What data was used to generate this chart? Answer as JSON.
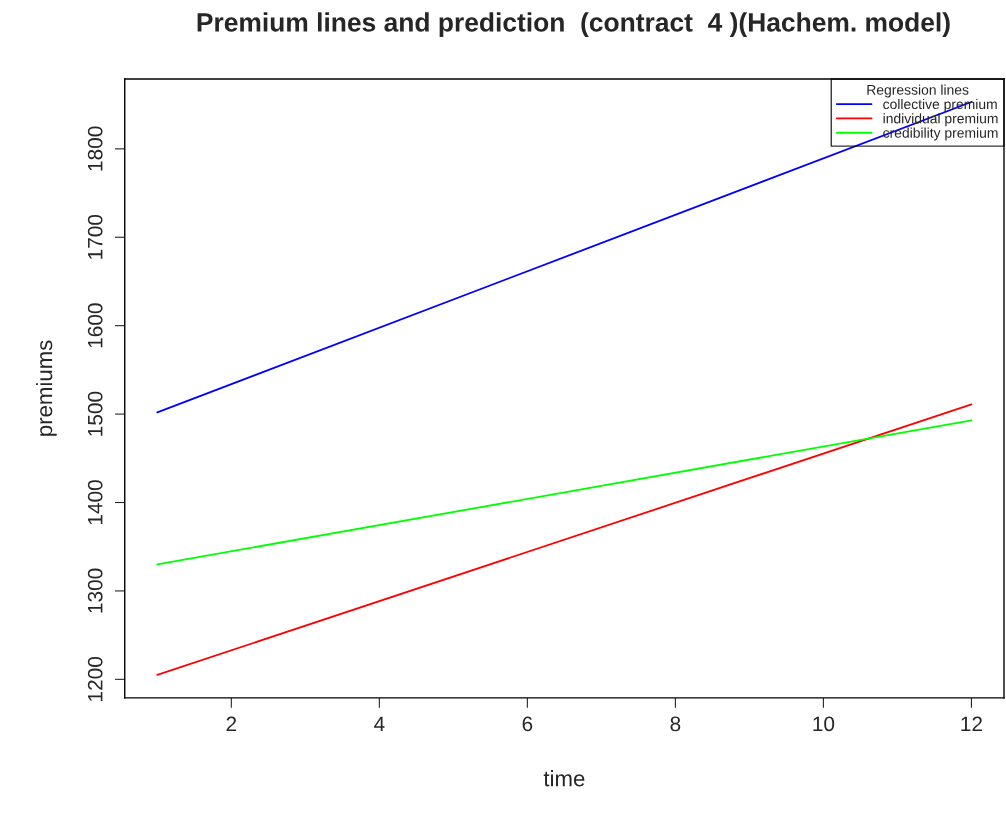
{
  "chart_data": {
    "type": "line",
    "title": "Premium lines and prediction  (contract  4 )(Hachem. model)",
    "xlabel": "time",
    "ylabel": "premiums",
    "legend_title": "Regression lines",
    "legend": "top right",
    "grid": false,
    "marker": "none",
    "line_style": "solid",
    "xlim": [
      0.56,
      12.44
    ],
    "xticks": [
      2,
      4,
      6,
      8,
      10,
      12
    ],
    "ylim": [
      1179,
      1879
    ],
    "yticks": [
      1200,
      1300,
      1400,
      1500,
      1600,
      1700,
      1800
    ],
    "x": [
      1,
      12
    ],
    "series": [
      {
        "name": "collective premium",
        "color": "#0000ff",
        "values": [
          1502,
          1853
        ]
      },
      {
        "name": "individual premium",
        "color": "#ff0000",
        "values": [
          1205,
          1511
        ]
      },
      {
        "name": "credibility premium",
        "color": "#00ff00",
        "values": [
          1330,
          1493
        ]
      }
    ]
  }
}
